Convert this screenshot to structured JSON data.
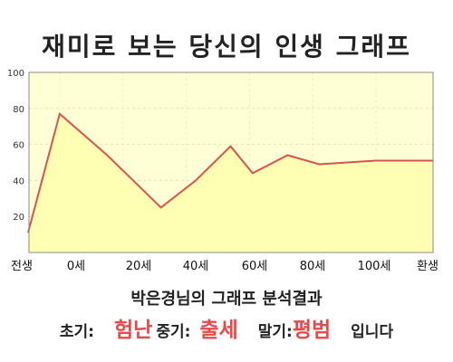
{
  "title": "재미로 보는 당신의 인생 그래프",
  "result": {
    "heading": "박은경님의 그래프 분석결과",
    "early_label": "초기:",
    "early_value": "험난",
    "middle_label": "중기:",
    "middle_value": "출세",
    "late_label": "말기:",
    "late_value": "평범",
    "suffix": "입니다"
  },
  "colors": {
    "plot_background": "#ffffd6",
    "area_fill": "#ffffb3",
    "line": "#d9534f",
    "highlight_text": "#e84a4a"
  },
  "chart_data": {
    "type": "area",
    "x_tick_labels": [
      "전생",
      "0세",
      "20세",
      "40세",
      "60세",
      "80세",
      "100세",
      "환생"
    ],
    "y_ticks": [
      20,
      40,
      60,
      80,
      100
    ],
    "ylim": [
      0,
      100
    ],
    "grid": true,
    "series": [
      {
        "points": [
          {
            "x": -10,
            "y": 11
          },
          {
            "x": 0,
            "y": 77
          },
          {
            "x": 15,
            "y": 54
          },
          {
            "x": 32,
            "y": 25
          },
          {
            "x": 43,
            "y": 40
          },
          {
            "x": 54,
            "y": 59
          },
          {
            "x": 61,
            "y": 44
          },
          {
            "x": 72,
            "y": 54
          },
          {
            "x": 82,
            "y": 49
          },
          {
            "x": 100,
            "y": 51
          },
          {
            "x": 118,
            "y": 51
          }
        ]
      }
    ]
  }
}
